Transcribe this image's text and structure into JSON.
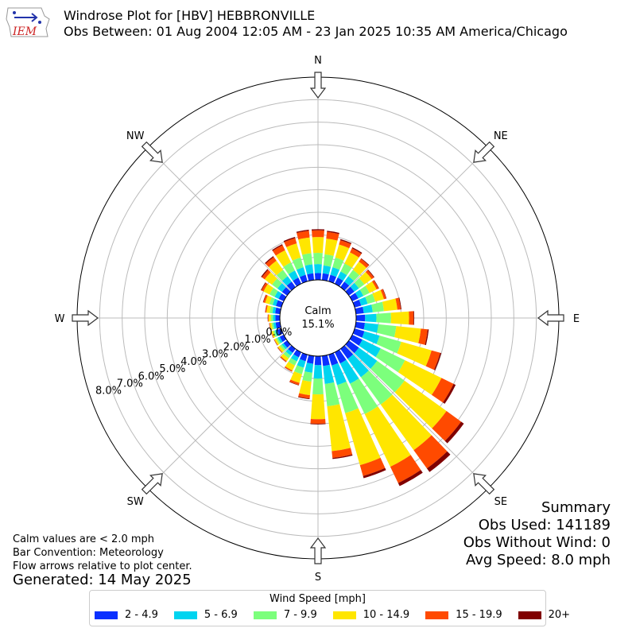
{
  "header": {
    "logo_text": "IEM",
    "title": "Windrose Plot for [HBV] HEBBRONVILLE",
    "subtitle": "Obs Between: 01 Aug 2004 12:05 AM - 23 Jan 2025 10:35 AM America/Chicago"
  },
  "notes": {
    "calm": "Calm values are < 2.0 mph",
    "bar": "Bar Convention: Meteorology",
    "flow": "Flow arrows relative to plot center.",
    "generated": "Generated: 14 May 2025"
  },
  "summary": {
    "title": "Summary",
    "obs_used": "Obs Used: 141189",
    "obs_without_wind": "Obs Without Wind: 0",
    "avg_speed": "Avg Speed: 8.0 mph"
  },
  "chart_data": {
    "type": "windrose",
    "calm_label": "Calm",
    "calm_value": "15.1%",
    "directions": [
      "N",
      "NE",
      "E",
      "SE",
      "S",
      "SW",
      "W",
      "NW"
    ],
    "radial_ticks": [
      "0.0%",
      "1.0%",
      "2.0%",
      "3.0%",
      "4.0%",
      "5.0%",
      "6.0%",
      "7.0%",
      "8.0%"
    ],
    "radial_max": 9,
    "legend_title": "Wind Speed [mph]",
    "bins": [
      {
        "label": "2 - 4.9",
        "color": "#0a30ff"
      },
      {
        "label": "5 - 6.9",
        "color": "#00d4f0"
      },
      {
        "label": "7 - 9.9",
        "color": "#7cff7c"
      },
      {
        "label": "10 - 14.9",
        "color": "#ffe600"
      },
      {
        "label": "15 - 19.9",
        "color": "#ff4a00"
      },
      {
        "label": "20+",
        "color": "#800000"
      }
    ],
    "sectors": [
      {
        "dir": 0,
        "values": [
          0.3,
          0.4,
          0.5,
          0.7,
          0.3,
          0.05
        ]
      },
      {
        "dir": 10,
        "values": [
          0.3,
          0.35,
          0.5,
          0.7,
          0.3,
          0.05
        ]
      },
      {
        "dir": 20,
        "values": [
          0.3,
          0.35,
          0.45,
          0.6,
          0.2,
          0.05
        ]
      },
      {
        "dir": 30,
        "values": [
          0.3,
          0.3,
          0.4,
          0.55,
          0.2,
          0.05
        ]
      },
      {
        "dir": 40,
        "values": [
          0.3,
          0.3,
          0.35,
          0.45,
          0.15,
          0.03
        ]
      },
      {
        "dir": 50,
        "values": [
          0.3,
          0.25,
          0.3,
          0.4,
          0.12,
          0.03
        ]
      },
      {
        "dir": 60,
        "values": [
          0.3,
          0.25,
          0.3,
          0.35,
          0.1,
          0.02
        ]
      },
      {
        "dir": 70,
        "values": [
          0.3,
          0.3,
          0.35,
          0.4,
          0.1,
          0.02
        ]
      },
      {
        "dir": 80,
        "values": [
          0.35,
          0.4,
          0.5,
          0.6,
          0.15,
          0.03
        ]
      },
      {
        "dir": 90,
        "values": [
          0.4,
          0.5,
          0.65,
          0.8,
          0.2,
          0.03
        ]
      },
      {
        "dir": 100,
        "values": [
          0.4,
          0.6,
          0.8,
          1.1,
          0.3,
          0.05
        ]
      },
      {
        "dir": 110,
        "values": [
          0.45,
          0.7,
          1.0,
          1.4,
          0.4,
          0.05
        ]
      },
      {
        "dir": 120,
        "values": [
          0.5,
          0.9,
          1.2,
          1.8,
          0.6,
          0.1
        ]
      },
      {
        "dir": 130,
        "values": [
          0.55,
          1.0,
          1.5,
          2.3,
          0.8,
          0.15
        ]
      },
      {
        "dir": 140,
        "values": [
          0.55,
          1.0,
          1.5,
          2.5,
          1.0,
          0.2
        ]
      },
      {
        "dir": 150,
        "values": [
          0.55,
          1.0,
          1.5,
          2.6,
          0.8,
          0.15
        ]
      },
      {
        "dir": 160,
        "values": [
          0.5,
          0.9,
          1.3,
          2.4,
          0.5,
          0.1
        ]
      },
      {
        "dir": 170,
        "values": [
          0.45,
          0.8,
          1.0,
          2.0,
          0.3,
          0.05
        ]
      },
      {
        "dir": 180,
        "values": [
          0.4,
          0.6,
          0.7,
          1.1,
          0.2,
          0.03
        ]
      },
      {
        "dir": 190,
        "values": [
          0.35,
          0.4,
          0.4,
          0.6,
          0.15,
          0.03
        ]
      },
      {
        "dir": 200,
        "values": [
          0.3,
          0.3,
          0.3,
          0.4,
          0.1,
          0.02
        ]
      },
      {
        "dir": 210,
        "values": [
          0.25,
          0.2,
          0.2,
          0.25,
          0.05,
          0.01
        ]
      },
      {
        "dir": 220,
        "values": [
          0.22,
          0.15,
          0.15,
          0.15,
          0.05,
          0.01
        ]
      },
      {
        "dir": 230,
        "values": [
          0.2,
          0.1,
          0.1,
          0.1,
          0.03,
          0.01
        ]
      },
      {
        "dir": 240,
        "values": [
          0.2,
          0.1,
          0.08,
          0.08,
          0.02,
          0.01
        ]
      },
      {
        "dir": 250,
        "values": [
          0.2,
          0.1,
          0.08,
          0.08,
          0.02,
          0.01
        ]
      },
      {
        "dir": 260,
        "values": [
          0.2,
          0.1,
          0.08,
          0.08,
          0.02,
          0.01
        ]
      },
      {
        "dir": 270,
        "values": [
          0.2,
          0.1,
          0.1,
          0.1,
          0.03,
          0.01
        ]
      },
      {
        "dir": 280,
        "values": [
          0.22,
          0.12,
          0.12,
          0.15,
          0.05,
          0.01
        ]
      },
      {
        "dir": 290,
        "values": [
          0.25,
          0.15,
          0.15,
          0.2,
          0.08,
          0.02
        ]
      },
      {
        "dir": 300,
        "values": [
          0.25,
          0.2,
          0.25,
          0.3,
          0.1,
          0.03
        ]
      },
      {
        "dir": 310,
        "values": [
          0.28,
          0.25,
          0.3,
          0.4,
          0.15,
          0.05
        ]
      },
      {
        "dir": 320,
        "values": [
          0.3,
          0.3,
          0.35,
          0.5,
          0.2,
          0.05
        ]
      },
      {
        "dir": 330,
        "values": [
          0.3,
          0.35,
          0.4,
          0.6,
          0.25,
          0.05
        ]
      },
      {
        "dir": 340,
        "values": [
          0.3,
          0.35,
          0.45,
          0.65,
          0.25,
          0.05
        ]
      },
      {
        "dir": 350,
        "values": [
          0.3,
          0.4,
          0.5,
          0.7,
          0.3,
          0.05
        ]
      }
    ]
  }
}
